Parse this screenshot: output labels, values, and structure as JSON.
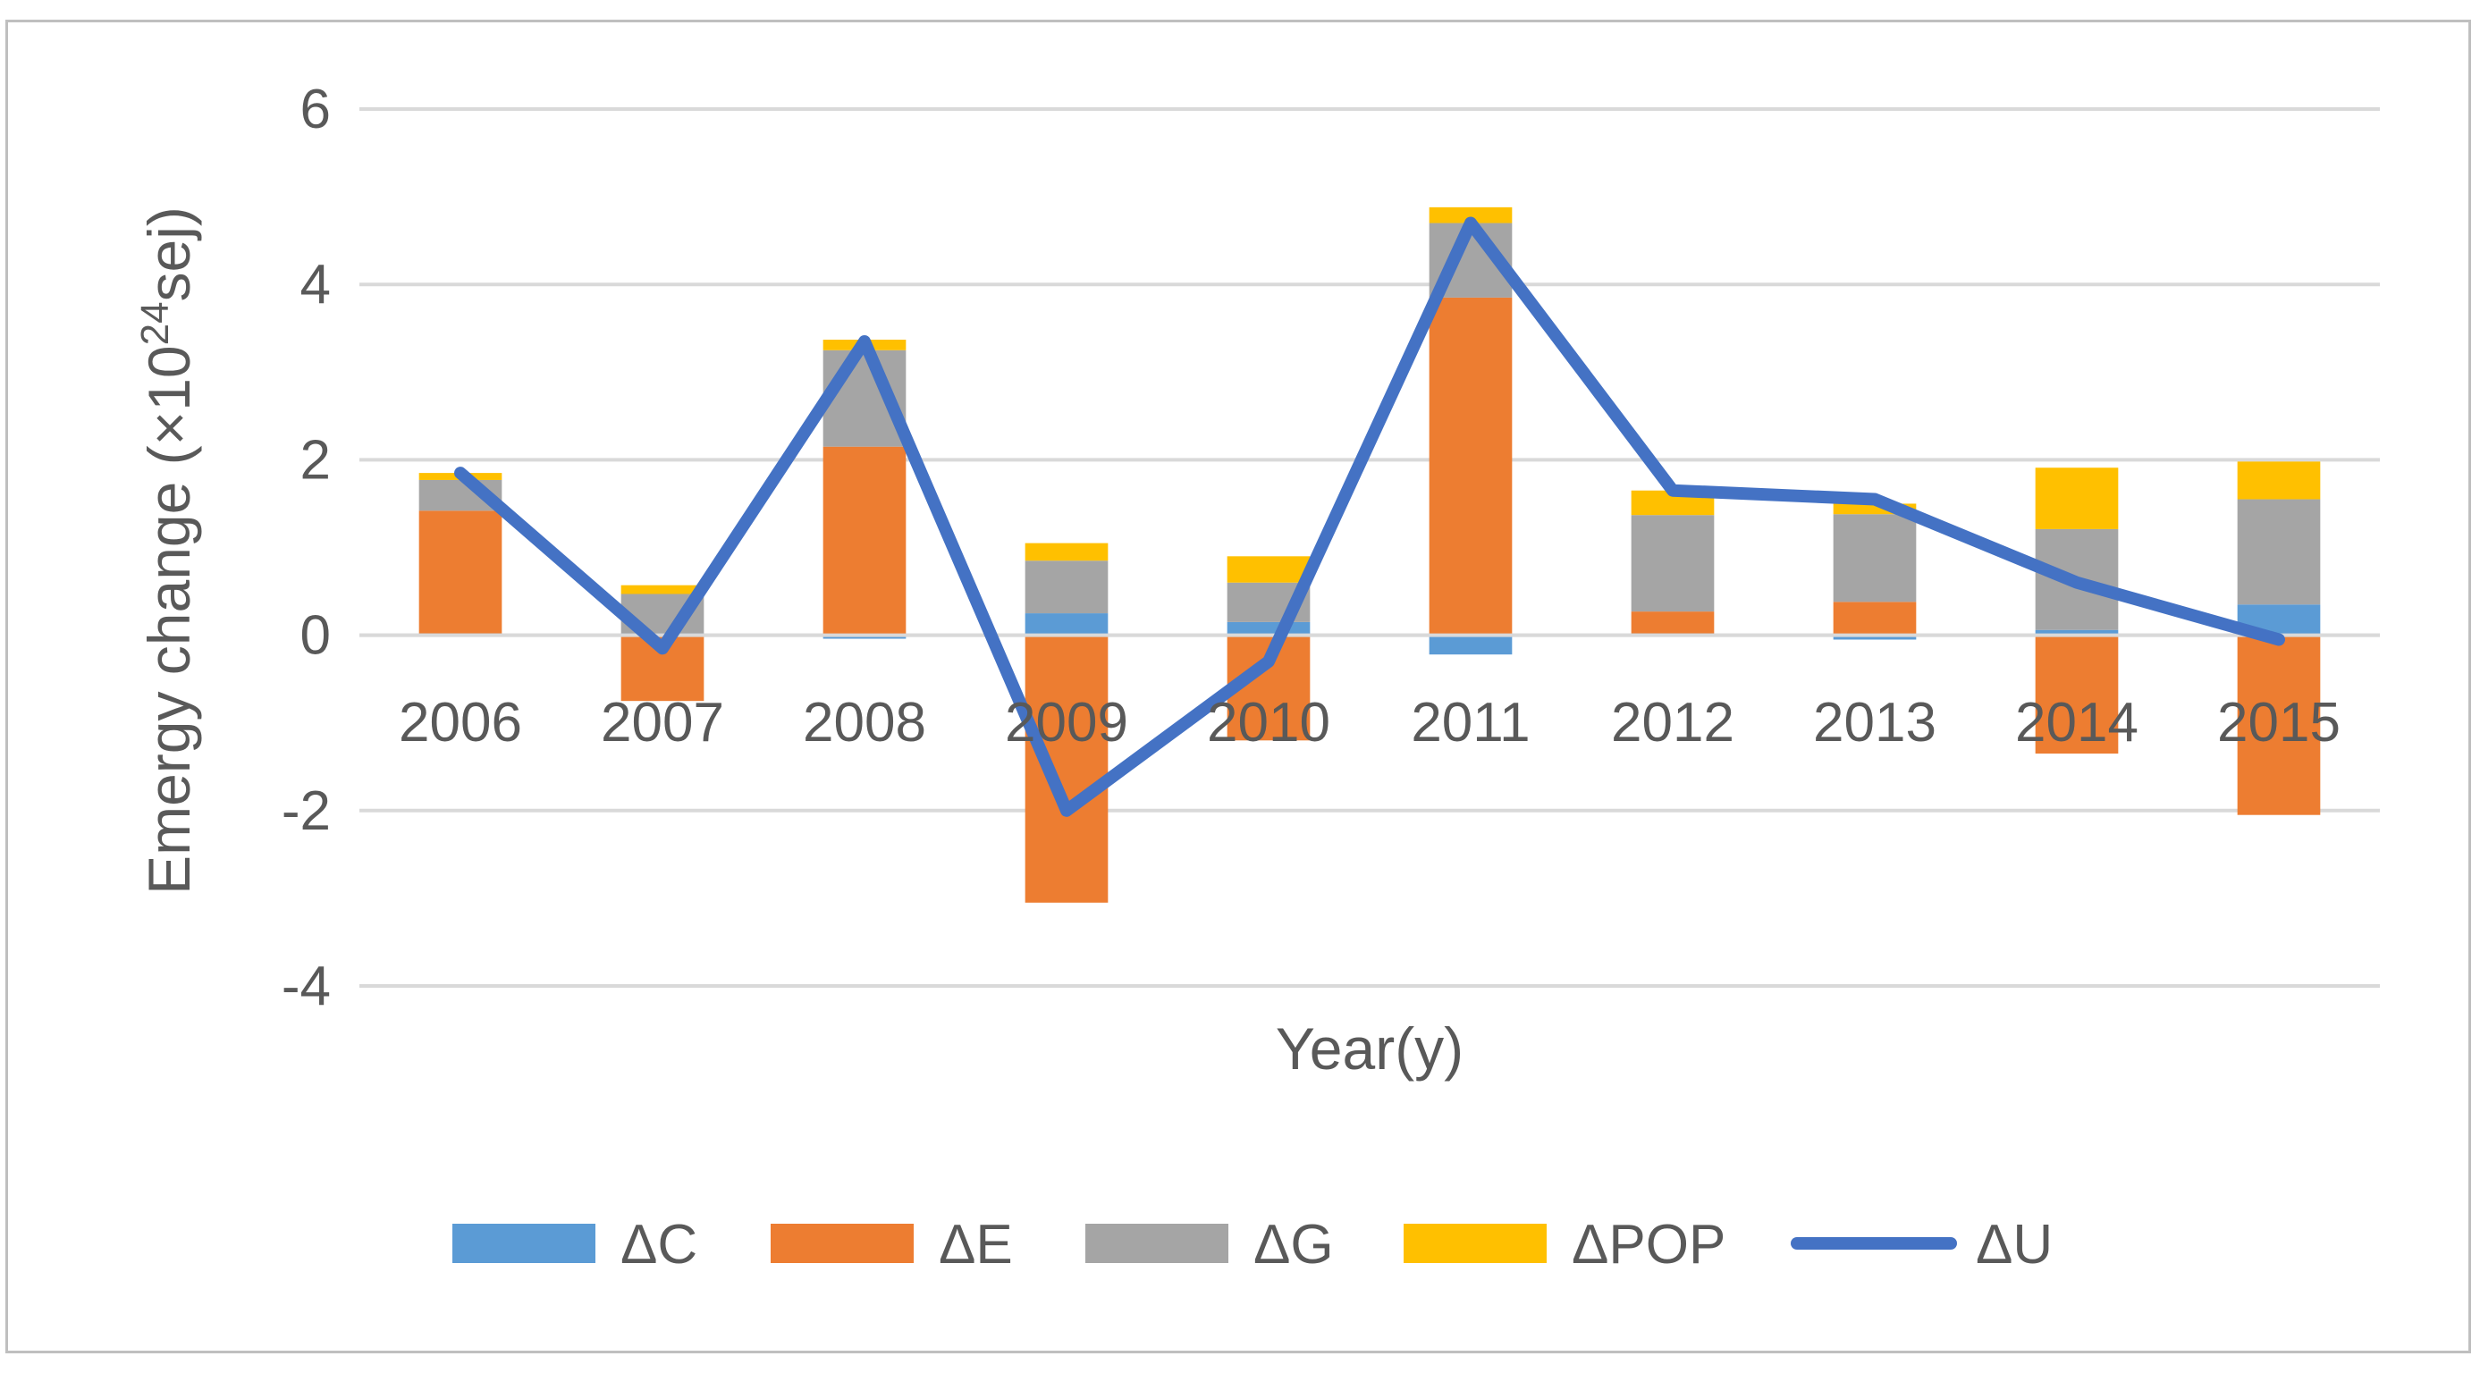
{
  "chart_data": {
    "type": "bar",
    "stacked": true,
    "title": "",
    "xlabel": "Year(y)",
    "ylabel": {
      "prefix": "Emergy change (×10",
      "superscript": "24",
      "suffix": "sej)"
    },
    "ylim": [
      -4,
      6
    ],
    "yticks": [
      6,
      4,
      2,
      0,
      -2,
      -4
    ],
    "grid": true,
    "legend_position": "bottom",
    "categories": [
      "2006",
      "2007",
      "2008",
      "2009",
      "2010",
      "2011",
      "2012",
      "2013",
      "2014",
      "2015"
    ],
    "series": [
      {
        "name": "ΔC",
        "kind": "bar",
        "color": "#5b9bd5",
        "values": [
          0.02,
          0.02,
          -0.04,
          0.25,
          0.15,
          -0.22,
          0.02,
          -0.05,
          0.06,
          0.35
        ]
      },
      {
        "name": "ΔE",
        "kind": "bar",
        "color": "#ed7d31",
        "values": [
          1.4,
          -0.75,
          2.15,
          -3.05,
          -1.2,
          3.85,
          0.25,
          0.38,
          -1.35,
          -2.05
        ]
      },
      {
        "name": "ΔG",
        "kind": "bar",
        "color": "#a5a5a5",
        "values": [
          0.35,
          0.45,
          1.1,
          0.6,
          0.45,
          0.85,
          1.1,
          1.0,
          1.15,
          1.2
        ]
      },
      {
        "name": "ΔPOP",
        "kind": "bar",
        "color": "#ffc000",
        "values": [
          0.08,
          0.1,
          0.12,
          0.2,
          0.3,
          0.18,
          0.28,
          0.12,
          0.7,
          0.43
        ]
      },
      {
        "name": "ΔU",
        "kind": "line",
        "color": "#4472c4",
        "values": [
          1.85,
          -0.15,
          3.35,
          -2.0,
          -0.3,
          4.7,
          1.65,
          1.55,
          0.6,
          -0.05
        ]
      }
    ]
  }
}
